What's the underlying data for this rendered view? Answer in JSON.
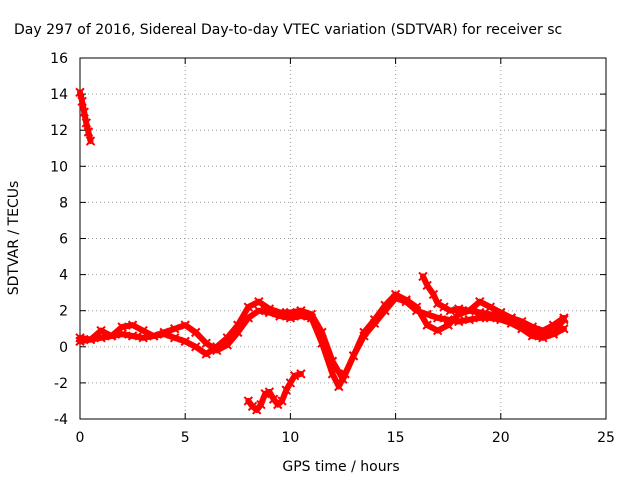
{
  "chart_data": {
    "type": "scatter",
    "title": "Day 297 of 2016, Sidereal Day-to-day VTEC variation (SDTVAR) for receiver sc",
    "xlabel": "GPS time / hours",
    "ylabel": "SDTVAR / TECUs",
    "xlim": [
      0,
      25
    ],
    "ylim": [
      -4,
      16
    ],
    "xticks": [
      "0",
      "5",
      "10",
      "15",
      "20",
      "25"
    ],
    "yticks": [
      "-4",
      "-2",
      "0",
      "2",
      "4",
      "6",
      "8",
      "10",
      "12",
      "14",
      "16"
    ],
    "grid": true,
    "legend": false,
    "series_color": "#ff0000",
    "series": [
      {
        "x": [
          0.0,
          0.1,
          0.2,
          0.3,
          0.4,
          0.5
        ],
        "y": [
          14.1,
          13.6,
          13.0,
          12.4,
          11.9,
          11.4
        ]
      },
      {
        "x": [
          0.0,
          0.5,
          1.0,
          1.5,
          2.0,
          2.5,
          3.0,
          3.5,
          4.0,
          4.5,
          5.0,
          5.5,
          6.0,
          6.5,
          7.0,
          7.5,
          8.0,
          8.5,
          9.0,
          9.5,
          10.0,
          10.5,
          11.0,
          11.5,
          12.0,
          12.3,
          12.6,
          13.0,
          13.5,
          14.0,
          14.5,
          15.0,
          15.5,
          16.0,
          16.5,
          17.0,
          17.5,
          18.0,
          18.5,
          19.0,
          19.5,
          20.0,
          20.5,
          21.0,
          21.5,
          22.0,
          22.5,
          23.0
        ],
        "y": [
          0.3,
          0.4,
          0.5,
          0.6,
          0.7,
          0.6,
          0.5,
          0.6,
          0.8,
          1.0,
          1.2,
          0.8,
          0.2,
          -0.2,
          0.1,
          0.8,
          1.6,
          2.0,
          1.9,
          1.7,
          1.6,
          1.7,
          1.6,
          0.2,
          -1.5,
          -2.2,
          -1.5,
          -0.5,
          0.6,
          1.3,
          2.0,
          2.7,
          2.5,
          2.0,
          1.8,
          1.6,
          1.5,
          1.4,
          1.5,
          1.6,
          1.6,
          1.5,
          1.3,
          1.0,
          0.6,
          0.5,
          0.7,
          1.0
        ]
      },
      {
        "x": [
          0.0,
          0.5,
          1.0,
          1.5,
          2.0,
          2.5,
          3.0,
          3.5,
          4.0,
          4.5,
          5.0,
          5.5,
          6.0,
          6.5,
          7.0,
          7.5,
          8.0,
          8.5,
          9.0,
          9.5,
          10.0,
          10.5,
          11.0,
          11.5,
          12.0,
          12.5,
          13.0,
          13.5,
          14.0,
          14.5,
          15.0,
          15.5,
          16.0,
          16.5,
          17.0,
          17.5,
          18.0,
          18.5,
          19.0,
          19.5,
          20.0,
          20.5,
          21.0,
          21.5,
          22.0,
          22.5,
          23.0
        ],
        "y": [
          0.5,
          0.4,
          0.9,
          0.6,
          1.1,
          1.2,
          0.9,
          0.6,
          0.7,
          0.5,
          0.3,
          0.0,
          -0.4,
          0.0,
          0.5,
          1.2,
          2.2,
          2.5,
          2.1,
          1.9,
          1.9,
          2.0,
          1.8,
          0.8,
          -0.8,
          -1.8,
          -0.5,
          0.8,
          1.5,
          2.3,
          2.9,
          2.6,
          2.2,
          1.2,
          0.9,
          1.2,
          1.8,
          2.0,
          1.9,
          1.8,
          1.7,
          1.6,
          1.4,
          1.1,
          0.9,
          1.2,
          1.6
        ]
      },
      {
        "x": [
          16.3,
          16.5,
          16.8,
          17.0,
          17.3,
          17.6,
          18.0,
          18.5,
          19.0,
          19.5,
          20.0,
          20.5,
          21.0,
          21.5,
          22.0,
          22.5,
          23.0
        ],
        "y": [
          3.9,
          3.4,
          2.9,
          2.4,
          2.2,
          2.0,
          2.1,
          2.0,
          2.5,
          2.2,
          1.9,
          1.6,
          1.2,
          0.9,
          0.7,
          0.8,
          1.5
        ]
      },
      {
        "x": [
          8.0,
          8.2,
          8.4,
          8.6,
          8.8,
          9.0,
          9.2,
          9.4,
          9.6,
          9.8,
          10.0,
          10.2,
          10.5
        ],
        "y": [
          -3.0,
          -3.3,
          -3.5,
          -3.2,
          -2.6,
          -2.5,
          -2.9,
          -3.2,
          -3.0,
          -2.4,
          -2.0,
          -1.6,
          -1.5
        ]
      }
    ]
  }
}
